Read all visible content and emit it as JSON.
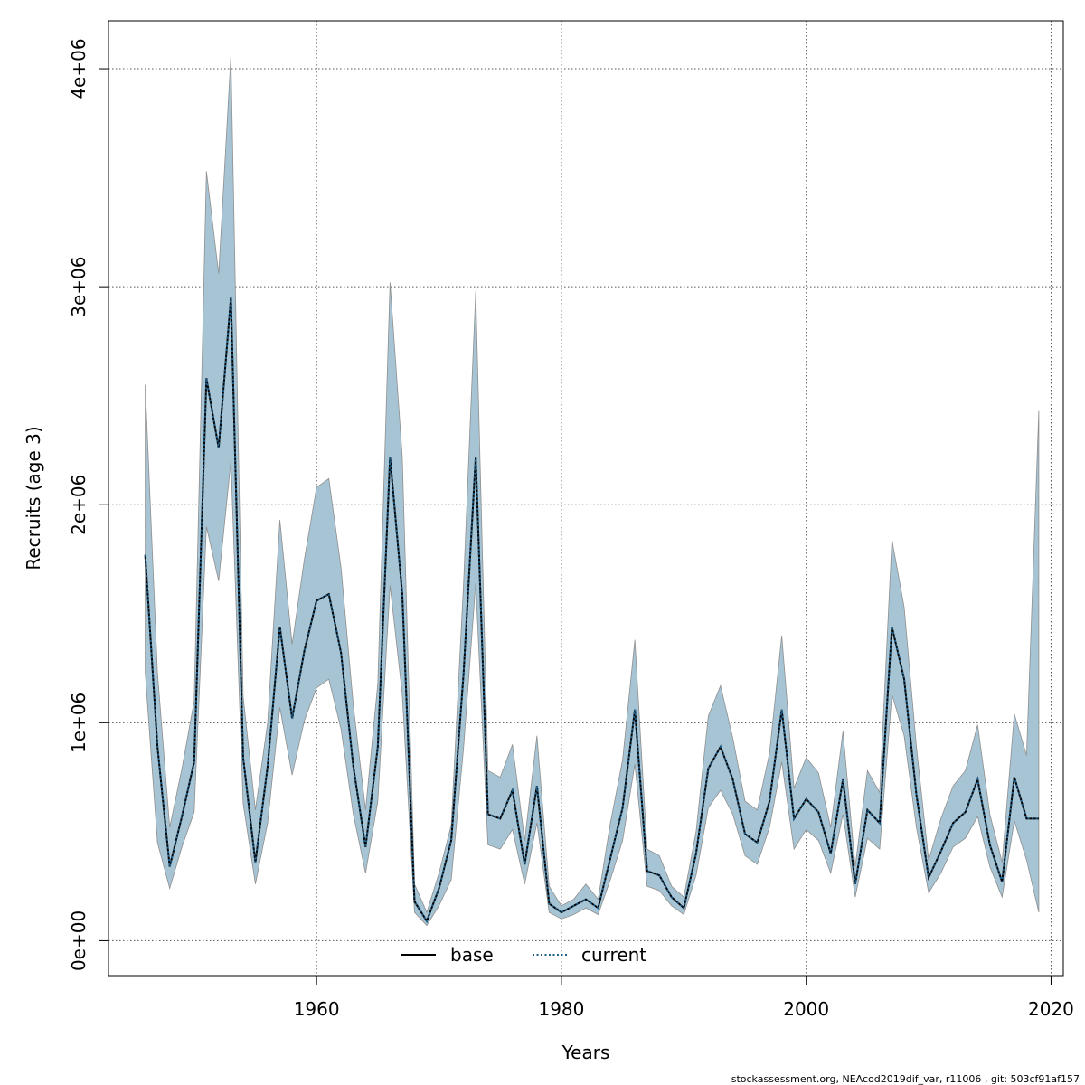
{
  "chart_data": {
    "type": "line",
    "title": "",
    "xlabel": "Years",
    "ylabel": "Recruits (age 3)",
    "xlim": [
      1943,
      2021
    ],
    "ylim": [
      -160000,
      4220000
    ],
    "grid": true,
    "x_ticks": [
      1960,
      1980,
      2000,
      2020
    ],
    "x_tick_labels": [
      "1960",
      "1980",
      "2000",
      "2020"
    ],
    "y_ticks": [
      0,
      1000000,
      2000000,
      3000000,
      4000000
    ],
    "y_tick_labels": [
      "0e+00",
      "1e+06",
      "2e+06",
      "3e+06",
      "4e+06"
    ],
    "legend": {
      "placement": "bottom",
      "entries": [
        {
          "label": "base",
          "style": "solid"
        },
        {
          "label": "current",
          "style": "dotted"
        }
      ]
    },
    "colors": {
      "band": "#a6c4d4",
      "band_edge": "#8f8f8f",
      "base": "#000000",
      "current": "#1f5f8a",
      "grid": "#555555"
    },
    "x": [
      1946,
      1947,
      1948,
      1949,
      1950,
      1951,
      1952,
      1953,
      1954,
      1955,
      1956,
      1957,
      1958,
      1959,
      1960,
      1961,
      1962,
      1963,
      1964,
      1965,
      1966,
      1967,
      1968,
      1969,
      1970,
      1971,
      1972,
      1973,
      1974,
      1975,
      1976,
      1977,
      1978,
      1979,
      1980,
      1981,
      1982,
      1983,
      1984,
      1985,
      1986,
      1987,
      1988,
      1989,
      1990,
      1991,
      1992,
      1993,
      1994,
      1995,
      1996,
      1997,
      1998,
      1999,
      2000,
      2001,
      2002,
      2003,
      2004,
      2005,
      2006,
      2007,
      2008,
      2009,
      2010,
      2011,
      2012,
      2013,
      2014,
      2015,
      2016,
      2017,
      2018,
      2019
    ],
    "series": [
      {
        "name": "base",
        "values": [
          1770000,
          890000,
          340000,
          570000,
          820000,
          2580000,
          2260000,
          2950000,
          840000,
          360000,
          800000,
          1440000,
          1020000,
          1330000,
          1560000,
          1590000,
          1320000,
          800000,
          430000,
          890000,
          2220000,
          1590000,
          180000,
          90000,
          240000,
          460000,
          1220000,
          2220000,
          580000,
          560000,
          690000,
          350000,
          710000,
          170000,
          130000,
          160000,
          190000,
          150000,
          380000,
          610000,
          1060000,
          320000,
          300000,
          200000,
          150000,
          400000,
          790000,
          890000,
          740000,
          490000,
          450000,
          640000,
          1060000,
          560000,
          650000,
          590000,
          400000,
          740000,
          260000,
          600000,
          540000,
          1440000,
          1200000,
          670000,
          290000,
          410000,
          540000,
          590000,
          740000,
          440000,
          270000,
          750000,
          560000,
          560000
        ]
      },
      {
        "name": "current",
        "values": [
          1770000,
          890000,
          340000,
          570000,
          820000,
          2580000,
          2260000,
          2950000,
          840000,
          360000,
          800000,
          1440000,
          1020000,
          1330000,
          1560000,
          1590000,
          1320000,
          800000,
          430000,
          890000,
          2220000,
          1590000,
          180000,
          90000,
          240000,
          460000,
          1220000,
          2220000,
          580000,
          560000,
          690000,
          350000,
          710000,
          170000,
          130000,
          160000,
          190000,
          150000,
          380000,
          610000,
          1060000,
          320000,
          300000,
          200000,
          150000,
          400000,
          790000,
          890000,
          740000,
          490000,
          450000,
          640000,
          1060000,
          560000,
          650000,
          590000,
          400000,
          740000,
          260000,
          600000,
          540000,
          1440000,
          1200000,
          670000,
          290000,
          410000,
          540000,
          590000,
          740000,
          440000,
          270000,
          750000,
          560000,
          560000
        ]
      }
    ],
    "band_upper": [
      2550000,
      1230000,
      520000,
      790000,
      1100000,
      3530000,
      3060000,
      4060000,
      1120000,
      600000,
      1000000,
      1930000,
      1360000,
      1750000,
      2080000,
      2120000,
      1710000,
      1080000,
      600000,
      1180000,
      3020000,
      2220000,
      260000,
      130000,
      310000,
      530000,
      1630000,
      2980000,
      780000,
      750000,
      900000,
      460000,
      940000,
      250000,
      160000,
      190000,
      260000,
      190000,
      540000,
      830000,
      1380000,
      420000,
      390000,
      250000,
      200000,
      500000,
      1030000,
      1170000,
      930000,
      640000,
      600000,
      860000,
      1400000,
      700000,
      840000,
      770000,
      520000,
      960000,
      340000,
      780000,
      680000,
      1840000,
      1530000,
      890000,
      370000,
      560000,
      710000,
      780000,
      990000,
      580000,
      360000,
      1040000,
      850000,
      2430000
    ],
    "band_lower": [
      1230000,
      450000,
      240000,
      430000,
      590000,
      1900000,
      1650000,
      2200000,
      630000,
      260000,
      540000,
      1070000,
      760000,
      1010000,
      1160000,
      1200000,
      970000,
      580000,
      310000,
      640000,
      1630000,
      1130000,
      130000,
      70000,
      160000,
      280000,
      880000,
      1640000,
      440000,
      420000,
      510000,
      260000,
      540000,
      130000,
      100000,
      120000,
      150000,
      120000,
      280000,
      460000,
      810000,
      250000,
      230000,
      160000,
      120000,
      300000,
      610000,
      690000,
      580000,
      390000,
      350000,
      520000,
      820000,
      420000,
      510000,
      460000,
      310000,
      580000,
      200000,
      470000,
      420000,
      1130000,
      940000,
      520000,
      220000,
      310000,
      430000,
      470000,
      570000,
      340000,
      200000,
      550000,
      370000,
      130000
    ]
  },
  "footer_text": "stockassessment.org, NEAcod2019dif_var, r11006 , git: 503cf91af157"
}
